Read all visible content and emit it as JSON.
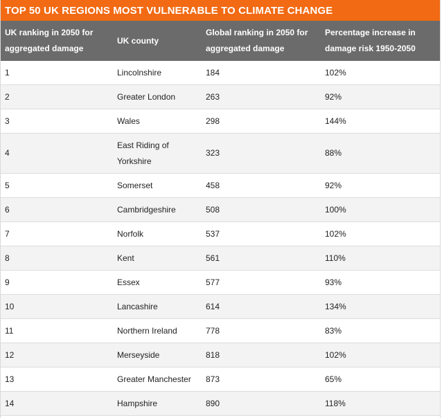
{
  "title": "TOP 50 UK REGIONS MOST VULNERABLE TO CLIMATE CHANGE",
  "colors": {
    "title_bg": "#f26a13",
    "header_bg": "#6b6b6b",
    "alt_row_bg": "#f3f3f3"
  },
  "headers": {
    "uk_rank": "UK ranking in 2050 for aggregated damage",
    "county": "UK county",
    "global_rank": "Global ranking in 2050 for aggregated damage",
    "increase": "Percentage increase in damage risk 1950-2050"
  },
  "rows": [
    {
      "uk_rank": "1",
      "county": "Lincolnshire",
      "global_rank": "184",
      "increase": "102%"
    },
    {
      "uk_rank": "2",
      "county": "Greater London",
      "global_rank": "263",
      "increase": "92%"
    },
    {
      "uk_rank": "3",
      "county": "Wales",
      "global_rank": "298",
      "increase": "144%"
    },
    {
      "uk_rank": "4",
      "county": "East Riding of Yorkshire",
      "global_rank": "323",
      "increase": "88%"
    },
    {
      "uk_rank": "5",
      "county": "Somerset",
      "global_rank": "458",
      "increase": "92%"
    },
    {
      "uk_rank": "6",
      "county": "Cambridgeshire",
      "global_rank": "508",
      "increase": "100%"
    },
    {
      "uk_rank": "7",
      "county": "Norfolk",
      "global_rank": "537",
      "increase": "102%"
    },
    {
      "uk_rank": "8",
      "county": "Kent",
      "global_rank": "561",
      "increase": "110%"
    },
    {
      "uk_rank": "9",
      "county": "Essex",
      "global_rank": "577",
      "increase": "93%"
    },
    {
      "uk_rank": "10",
      "county": "Lancashire",
      "global_rank": "614",
      "increase": "134%"
    },
    {
      "uk_rank": "11",
      "county": "Northern Ireland",
      "global_rank": "778",
      "increase": "83%"
    },
    {
      "uk_rank": "12",
      "county": "Merseyside",
      "global_rank": "818",
      "increase": "102%"
    },
    {
      "uk_rank": "13",
      "county": "Greater Manchester",
      "global_rank": "873",
      "increase": "65%"
    },
    {
      "uk_rank": "14",
      "county": "Hampshire",
      "global_rank": "890",
      "increase": "118%"
    }
  ]
}
